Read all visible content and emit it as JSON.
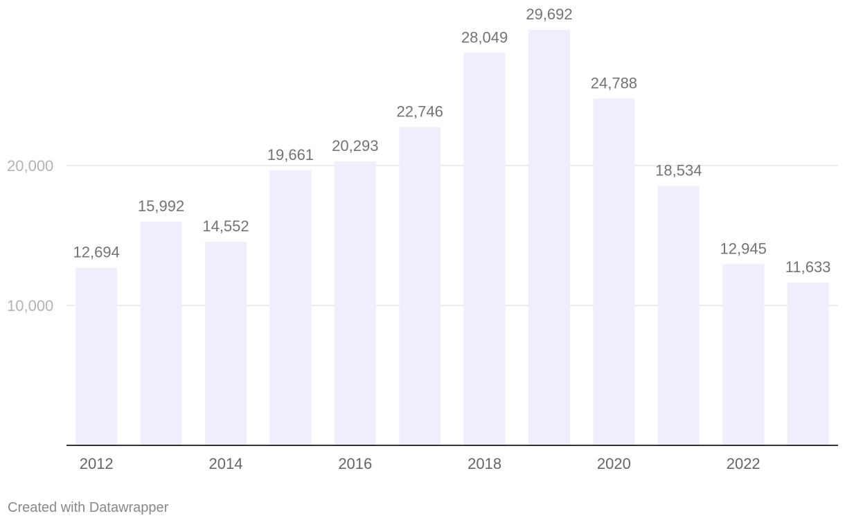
{
  "chart_data": {
    "type": "bar",
    "categories": [
      "2012",
      "2013",
      "2014",
      "2015",
      "2016",
      "2017",
      "2018",
      "2019",
      "2020",
      "2021",
      "2022",
      "2023"
    ],
    "values": [
      12694,
      15992,
      14552,
      19661,
      20293,
      22746,
      28049,
      29692,
      24788,
      18534,
      12945,
      11633
    ],
    "value_labels": [
      "12,694",
      "15,992",
      "14,552",
      "19,661",
      "20,293",
      "22,746",
      "28,049",
      "29,692",
      "24,788",
      "18,534",
      "12,945",
      "11,633"
    ],
    "x_tick_labels": [
      "2012",
      "2014",
      "2016",
      "2018",
      "2020",
      "2022"
    ],
    "y_ticks": [
      10000,
      20000
    ],
    "y_tick_labels": [
      "10,000",
      "20,000"
    ],
    "ylim": [
      0,
      30000
    ],
    "grid": true,
    "bar_color": "#eeeefd",
    "title": "",
    "xlabel": "",
    "ylabel": ""
  },
  "footer": {
    "credit": "Created with Datawrapper"
  }
}
